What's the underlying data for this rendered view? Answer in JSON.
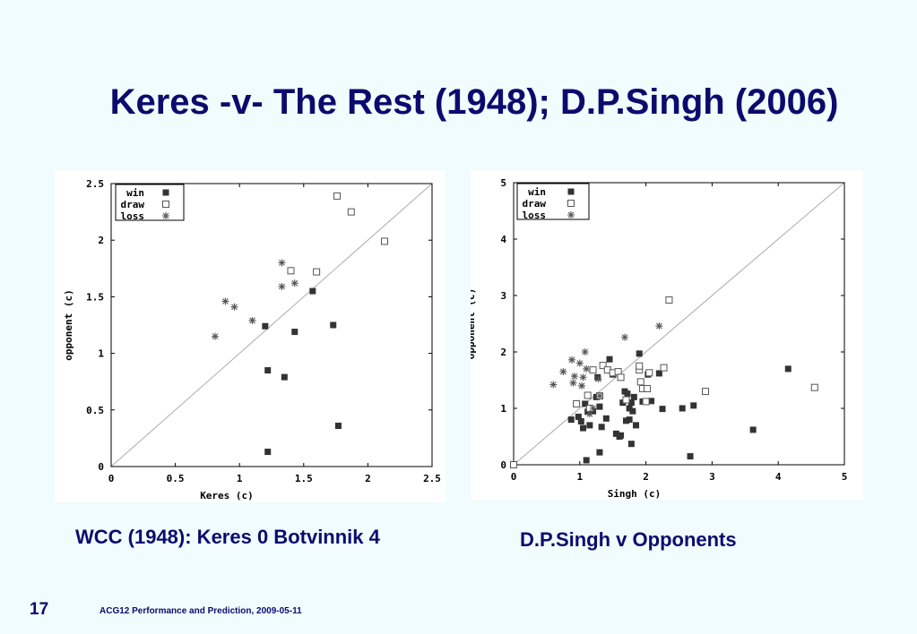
{
  "slide": {
    "title": "Keres -v- The Rest (1948); D.P.Singh (2006)",
    "caption_left": "WCC (1948): Keres 0 Botvinnik 4",
    "caption_right": "D.P.Singh v Opponents",
    "slide_number": "17",
    "footer": "ACG12 Performance and Prediction, 2009-05-11",
    "colors": {
      "title": "#0b0b6e",
      "background": "#f0fcfd",
      "marker": "#333333",
      "diagonal": "#aaaaaa"
    }
  },
  "chart_data": [
    {
      "type": "scatter",
      "xlabel": "Keres (c)",
      "ylabel": "opponent (c)",
      "xlim": [
        0,
        2.5
      ],
      "ylim": [
        0,
        2.5
      ],
      "xticks": [
        "0",
        "0.5",
        "1",
        "1.5",
        "2",
        "2.5"
      ],
      "yticks": [
        "0",
        "0.5",
        "1",
        "1.5",
        "2",
        "2.5"
      ],
      "diagonal": true,
      "legend_position": "top-left",
      "series": [
        {
          "name": "win",
          "marker": "filled-square",
          "points": [
            [
              1.2,
              1.24
            ],
            [
              1.22,
              0.85
            ],
            [
              1.35,
              0.79
            ],
            [
              1.43,
              1.19
            ],
            [
              1.57,
              1.55
            ],
            [
              1.73,
              1.25
            ],
            [
              1.77,
              0.36
            ],
            [
              1.22,
              0.13
            ]
          ]
        },
        {
          "name": "draw",
          "marker": "open-square",
          "points": [
            [
              1.76,
              2.39
            ],
            [
              1.87,
              2.25
            ],
            [
              2.13,
              1.99
            ],
            [
              1.4,
              1.73
            ],
            [
              1.6,
              1.72
            ]
          ]
        },
        {
          "name": "loss",
          "marker": "asterisk",
          "points": [
            [
              0.81,
              1.15
            ],
            [
              0.89,
              1.46
            ],
            [
              0.96,
              1.41
            ],
            [
              1.1,
              1.29
            ],
            [
              1.33,
              1.8
            ],
            [
              1.33,
              1.59
            ],
            [
              1.43,
              1.62
            ]
          ]
        }
      ]
    },
    {
      "type": "scatter",
      "xlabel": "Singh (c)",
      "ylabel": "opponent (c)",
      "xlim": [
        0,
        5
      ],
      "ylim": [
        0,
        5
      ],
      "xticks": [
        "0",
        "1",
        "2",
        "3",
        "4",
        "5"
      ],
      "yticks": [
        "0",
        "1",
        "2",
        "3",
        "4",
        "5"
      ],
      "diagonal": true,
      "legend_position": "top-left",
      "series": [
        {
          "name": "win",
          "marker": "filled-square",
          "points": [
            [
              0.87,
              0.8
            ],
            [
              0.98,
              0.85
            ],
            [
              1.02,
              0.77
            ],
            [
              1.05,
              0.65
            ],
            [
              1.08,
              1.08
            ],
            [
              1.12,
              0.94
            ],
            [
              1.15,
              0.7
            ],
            [
              1.2,
              0.95
            ],
            [
              1.25,
              1.2
            ],
            [
              1.27,
              1.55
            ],
            [
              1.3,
              1.03
            ],
            [
              1.33,
              0.67
            ],
            [
              1.4,
              0.82
            ],
            [
              1.45,
              1.87
            ],
            [
              1.55,
              0.55
            ],
            [
              1.62,
              0.52
            ],
            [
              1.65,
              1.1
            ],
            [
              1.68,
              1.3
            ],
            [
              1.7,
              0.78
            ],
            [
              1.72,
              1.26
            ],
            [
              1.75,
              0.8
            ],
            [
              1.78,
              1.1
            ],
            [
              1.8,
              0.95
            ],
            [
              1.82,
              1.2
            ],
            [
              1.85,
              0.7
            ],
            [
              1.9,
              1.97
            ],
            [
              1.95,
              1.12
            ],
            [
              2.03,
              1.6
            ],
            [
              2.08,
              1.13
            ],
            [
              2.2,
              1.62
            ],
            [
              2.25,
              0.99
            ],
            [
              2.55,
              1.0
            ],
            [
              2.72,
              1.05
            ],
            [
              3.62,
              0.62
            ],
            [
              4.15,
              1.7
            ],
            [
              1.1,
              0.08
            ],
            [
              1.3,
              0.22
            ],
            [
              1.6,
              0.5
            ],
            [
              1.78,
              0.37
            ],
            [
              2.67,
              0.15
            ],
            [
              1.75,
              1.0
            ],
            [
              1.5,
              1.6
            ]
          ]
        },
        {
          "name": "draw",
          "marker": "open-square",
          "points": [
            [
              0.0,
              0.0
            ],
            [
              0.95,
              1.08
            ],
            [
              1.12,
              1.23
            ],
            [
              1.15,
              1.0
            ],
            [
              1.2,
              1.68
            ],
            [
              1.3,
              1.22
            ],
            [
              1.35,
              1.76
            ],
            [
              1.42,
              1.68
            ],
            [
              1.5,
              1.63
            ],
            [
              1.58,
              1.65
            ],
            [
              1.62,
              1.55
            ],
            [
              1.7,
              1.15
            ],
            [
              1.9,
              1.68
            ],
            [
              1.92,
              1.47
            ],
            [
              1.95,
              1.35
            ],
            [
              2.0,
              1.12
            ],
            [
              2.02,
              1.35
            ],
            [
              2.05,
              1.63
            ],
            [
              2.27,
              1.72
            ],
            [
              2.35,
              2.92
            ],
            [
              2.9,
              1.3
            ],
            [
              4.55,
              1.37
            ],
            [
              1.9,
              1.75
            ]
          ]
        },
        {
          "name": "loss",
          "marker": "asterisk",
          "points": [
            [
              0.6,
              1.42
            ],
            [
              0.75,
              1.65
            ],
            [
              0.88,
              1.86
            ],
            [
              0.9,
              1.45
            ],
            [
              0.92,
              1.57
            ],
            [
              1.0,
              1.8
            ],
            [
              1.03,
              1.4
            ],
            [
              1.05,
              1.55
            ],
            [
              1.08,
              2.0
            ],
            [
              1.1,
              1.7
            ],
            [
              1.28,
              1.52
            ],
            [
              1.3,
              1.22
            ],
            [
              1.68,
              2.26
            ],
            [
              2.2,
              2.46
            ],
            [
              1.2,
              1.0
            ],
            [
              1.15,
              0.9
            ]
          ]
        }
      ]
    }
  ]
}
